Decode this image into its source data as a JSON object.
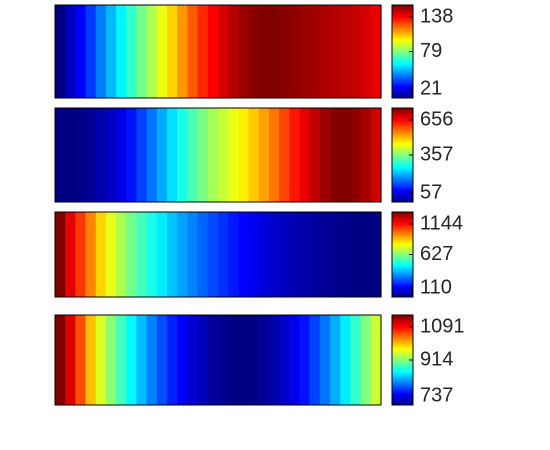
{
  "chart_data": [
    {
      "type": "heatmap",
      "colormap": "jet",
      "colorbar_ticks": [
        "138",
        "79",
        "21"
      ],
      "clim": [
        21,
        138
      ],
      "values": [
        21,
        28,
        35,
        42,
        50,
        57,
        64,
        71,
        78,
        85,
        92,
        99,
        106,
        113,
        119,
        124,
        128,
        132,
        135,
        137,
        138,
        138,
        137,
        136,
        135,
        134,
        133,
        132,
        131,
        130,
        128,
        126
      ]
    },
    {
      "type": "heatmap",
      "colormap": "jet",
      "colorbar_ticks": [
        "656",
        "357",
        "57"
      ],
      "clim": [
        57,
        656
      ],
      "values": [
        57,
        58,
        62,
        70,
        82,
        98,
        118,
        142,
        170,
        200,
        232,
        264,
        296,
        326,
        354,
        378,
        400,
        420,
        440,
        462,
        486,
        512,
        540,
        568,
        594,
        618,
        638,
        652,
        656,
        648,
        632,
        610
      ]
    },
    {
      "type": "heatmap",
      "colormap": "jet",
      "colorbar_ticks": [
        "1144",
        "627",
        "110"
      ],
      "clim": [
        110,
        1144
      ],
      "values": [
        1144,
        1040,
        960,
        880,
        800,
        730,
        670,
        615,
        565,
        520,
        478,
        440,
        405,
        372,
        342,
        314,
        288,
        264,
        242,
        222,
        204,
        188,
        174,
        162,
        150,
        140,
        132,
        125,
        119,
        115,
        112,
        110
      ]
    },
    {
      "type": "heatmap",
      "colormap": "jet",
      "colorbar_ticks": [
        "1091",
        "914",
        "737"
      ],
      "clim": [
        737,
        1091
      ],
      "values": [
        1091,
        1060,
        1020,
        980,
        946,
        918,
        892,
        868,
        846,
        826,
        808,
        792,
        778,
        766,
        756,
        748,
        742,
        738,
        737,
        739,
        744,
        752,
        762,
        774,
        788,
        804,
        822,
        842,
        864,
        888,
        914,
        940
      ]
    }
  ]
}
